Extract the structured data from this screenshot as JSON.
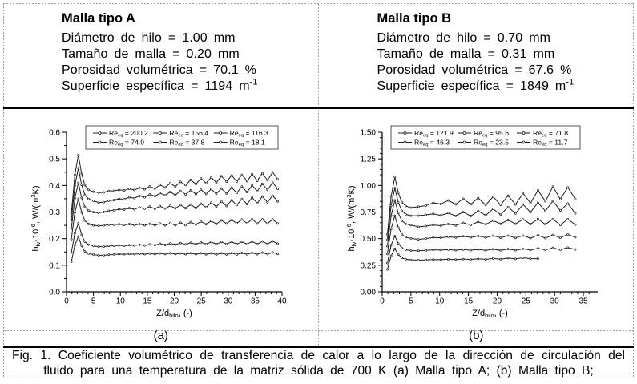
{
  "figure": {
    "specs": [
      {
        "title": "Malla tipo A",
        "lines": [
          "Diámetro de hilo = 1.00 mm",
          "Tamaño de malla = 0.20 mm",
          "Porosidad volumétrica = 70.1 %",
          "Superficie específica = 1194 m^{-1}"
        ]
      },
      {
        "title": "Malla tipo B",
        "lines": [
          "Diámetro de hilo = 0.70 mm",
          "Tamaño de malla = 0.31 mm",
          "Porosidad volumétrica = 67.6 %",
          "Superficie específica = 1849 m^{-1}"
        ]
      }
    ],
    "panel_labels": [
      "(a)",
      "(b)"
    ],
    "caption": "Fig. 1. Coeficiente volumétrico de transferencia de calor a lo largo de la dirección de circulación del fluido para una temperatura de la matriz sólida de 700 K (a) Malla tipo A; (b) Malla tipo B;"
  },
  "colors": {
    "background": "#ffffff",
    "text": "#000000",
    "rule": "#000000",
    "gridline": "#97a0b3",
    "chart_ink": "#1c1c1c",
    "marker_fill": "#ffffff"
  },
  "chart_data": [
    {
      "panel": "a",
      "type": "line",
      "xlabel": "Z/d_{hilo}, (-)",
      "ylabel": "h_{fv}·10^{-6}, W/(m^{3}K)",
      "xlim": [
        0,
        40
      ],
      "ylim": [
        0,
        0.6
      ],
      "xticks": [
        "0",
        "5",
        "10",
        "15",
        "20",
        "25",
        "30",
        "35",
        "40"
      ],
      "yticks": [
        "0.0",
        "0.1",
        "0.2",
        "0.3",
        "0.4",
        "0.5",
        "0.6"
      ],
      "x_minor_step": 1,
      "y_minor_step": 0.05,
      "legend_position": "top-inside",
      "grid": false,
      "series": [
        {
          "name": "Re_{eq} = 200.2",
          "x": [
            0.9,
            1.55,
            2.2,
            2.8,
            3.4,
            4.1,
            5.0,
            5.95,
            6.9,
            7.85,
            8.8,
            9.75,
            10.7,
            11.65,
            12.6,
            13.55,
            14.5,
            15.45,
            16.4,
            17.35,
            18.3,
            19.25,
            20.2,
            21.15,
            22.1,
            23.05,
            24.0,
            24.95,
            25.9,
            26.85,
            27.8,
            28.75,
            29.7,
            30.65,
            31.6,
            32.55,
            33.5,
            34.45,
            35.4,
            36.35,
            37.3,
            38.25,
            39.2
          ],
          "y": [
            0.295,
            0.4402,
            0.515,
            0.4438,
            0.4013,
            0.3835,
            0.3764,
            0.373,
            0.3738,
            0.3796,
            0.3799,
            0.3833,
            0.3813,
            0.3876,
            0.3828,
            0.3915,
            0.3854,
            0.3967,
            0.3879,
            0.4019,
            0.3922,
            0.408,
            0.3961,
            0.4136,
            0.4014,
            0.4213,
            0.405,
            0.4266,
            0.4093,
            0.4305,
            0.4109,
            0.435,
            0.4143,
            0.4378,
            0.4147,
            0.4403,
            0.4158,
            0.4427,
            0.4177,
            0.4458,
            0.4191,
            0.4496,
            0.4228
          ]
        },
        {
          "name": "Re_{eq} = 156.4",
          "x": [
            0.9,
            1.55,
            2.2,
            2.8,
            3.4,
            4.1,
            5.0,
            5.95,
            6.9,
            7.85,
            8.8,
            9.75,
            10.7,
            11.65,
            12.6,
            13.55,
            14.5,
            15.45,
            16.4,
            17.35,
            18.3,
            19.25,
            20.2,
            21.15,
            22.1,
            23.05,
            24.0,
            24.95,
            25.9,
            26.85,
            27.8,
            28.75,
            29.7,
            30.65,
            31.6,
            32.55,
            33.5,
            34.45,
            35.4,
            36.35,
            37.3,
            38.25,
            39.2
          ],
          "y": [
            0.27,
            0.3987,
            0.465,
            0.4021,
            0.3646,
            0.3488,
            0.3425,
            0.3354,
            0.3371,
            0.3425,
            0.345,
            0.3495,
            0.3482,
            0.3554,
            0.352,
            0.3608,
            0.3554,
            0.3665,
            0.3595,
            0.3711,
            0.3628,
            0.3757,
            0.3643,
            0.3795,
            0.3664,
            0.382,
            0.3676,
            0.3839,
            0.3679,
            0.3861,
            0.3691,
            0.3887,
            0.3699,
            0.3918,
            0.372,
            0.3961,
            0.3749,
            0.4003,
            0.3784,
            0.4061,
            0.3831,
            0.4106,
            0.3871
          ]
        },
        {
          "name": "Re_{eq} = 116.3",
          "x": [
            0.9,
            1.55,
            2.2,
            2.8,
            3.4,
            4.1,
            5.0,
            5.95,
            6.9,
            7.85,
            8.8,
            9.75,
            10.7,
            11.65,
            12.6,
            13.55,
            14.5,
            15.45,
            16.4,
            17.35,
            18.3,
            19.25,
            20.2,
            21.15,
            22.1,
            23.05,
            24.0,
            24.95,
            25.9,
            26.85,
            27.8,
            28.75,
            29.7,
            30.65,
            31.6,
            32.55,
            33.5,
            34.45,
            35.4,
            36.35,
            37.3,
            38.25,
            39.2
          ],
          "y": [
            0.238,
            0.3515,
            0.41,
            0.3533,
            0.3195,
            0.3054,
            0.2997,
            0.2971,
            0.3003,
            0.3047,
            0.3066,
            0.3106,
            0.3096,
            0.3146,
            0.3104,
            0.3177,
            0.3124,
            0.3205,
            0.3122,
            0.3225,
            0.3131,
            0.3235,
            0.3138,
            0.3264,
            0.3145,
            0.328,
            0.3149,
            0.3312,
            0.3176,
            0.3353,
            0.3202,
            0.3392,
            0.3227,
            0.3444,
            0.326,
            0.3494,
            0.3303,
            0.3541,
            0.3334,
            0.3586,
            0.3366,
            0.3618,
            0.3401
          ]
        },
        {
          "name": "Re_{eq} = 74.9",
          "x": [
            0.9,
            1.55,
            2.2,
            2.8,
            3.4,
            4.1,
            5.0,
            5.95,
            6.9,
            7.85,
            8.8,
            9.75,
            10.7,
            11.65,
            12.6,
            13.55,
            14.5,
            15.45,
            16.4,
            17.35,
            18.3,
            19.25,
            20.2,
            21.15,
            22.1,
            23.05,
            24.0,
            24.95,
            25.9,
            26.85,
            27.8,
            28.75,
            29.7,
            30.65,
            31.6,
            32.55,
            33.5,
            34.45,
            35.4,
            36.35,
            37.3,
            38.25,
            39.2
          ],
          "y": [
            0.198,
            0.2983,
            0.35,
            0.2985,
            0.2678,
            0.255,
            0.2498,
            0.2484,
            0.2496,
            0.2524,
            0.2526,
            0.2543,
            0.2519,
            0.2546,
            0.2507,
            0.2551,
            0.2503,
            0.2559,
            0.2503,
            0.2568,
            0.2499,
            0.2578,
            0.2504,
            0.2598,
            0.2511,
            0.2621,
            0.2531,
            0.2642,
            0.2541,
            0.2663,
            0.2552,
            0.2688,
            0.2565,
            0.2702,
            0.2576,
            0.2721,
            0.2573,
            0.2727,
            0.2566,
            0.2726,
            0.2567,
            0.2723,
            0.2568
          ]
        },
        {
          "name": "Re_{eq} = 37.8",
          "x": [
            0.9,
            1.55,
            2.2,
            2.8,
            3.4,
            4.1,
            5.0,
            5.95,
            6.9,
            7.85,
            8.8,
            9.75,
            10.7,
            11.65,
            12.6,
            13.55,
            14.5,
            15.45,
            16.4,
            17.35,
            18.3,
            19.25,
            20.2,
            21.15,
            22.1,
            23.05,
            24.0,
            24.95,
            25.9,
            26.85,
            27.8,
            28.75,
            29.7,
            30.65,
            31.6,
            32.55,
            33.5,
            34.45,
            35.4,
            36.35,
            37.3,
            38.25,
            39.2
          ],
          "y": [
            0.148,
            0.2206,
            0.258,
            0.2143,
            0.1883,
            0.1774,
            0.173,
            0.1699,
            0.1701,
            0.1727,
            0.1732,
            0.1747,
            0.1733,
            0.1756,
            0.1743,
            0.177,
            0.1745,
            0.1787,
            0.1757,
            0.1804,
            0.1765,
            0.182,
            0.1779,
            0.1834,
            0.1785,
            0.1847,
            0.1791,
            0.186,
            0.1798,
            0.1869,
            0.1797,
            0.1875,
            0.1798,
            0.188,
            0.1797,
            0.188,
            0.1795,
            0.1889,
            0.1797,
            0.1895,
            0.1802,
            0.1903,
            0.1812
          ]
        },
        {
          "name": "Re_{eq} = 18.1",
          "x": [
            0.9,
            1.55,
            2.2,
            2.8,
            3.4,
            4.1,
            5.0,
            5.95,
            6.9,
            7.85,
            8.8,
            9.75,
            10.7,
            11.65,
            12.6,
            13.55,
            14.5,
            15.45,
            16.4,
            17.35,
            18.3,
            19.25,
            20.2,
            21.15,
            22.1,
            23.05,
            24.0,
            24.95,
            25.9,
            26.85,
            27.8,
            28.75,
            29.7,
            30.65,
            31.6,
            32.55,
            33.5,
            34.45,
            35.4,
            36.35,
            37.3,
            38.25,
            39.2
          ],
          "y": [
            0.113,
            0.1757,
            0.208,
            0.1732,
            0.1524,
            0.1437,
            0.1402,
            0.1372,
            0.1376,
            0.1396,
            0.1406,
            0.1417,
            0.1412,
            0.1424,
            0.1416,
            0.1433,
            0.1419,
            0.1441,
            0.1418,
            0.1446,
            0.142,
            0.1449,
            0.1417,
            0.1448,
            0.1414,
            0.1451,
            0.1412,
            0.1451,
            0.1408,
            0.145,
            0.1407,
            0.1451,
            0.1406,
            0.1456,
            0.1406,
            0.146,
            0.1409,
            0.1466,
            0.1412,
            0.1475,
            0.1417,
            0.1481,
            0.1423
          ]
        }
      ]
    },
    {
      "panel": "b",
      "type": "line",
      "xlabel": "Z/d_{hilo}, (-)",
      "ylabel": "h_{fv}·10^{-6}, W/(m^{3}K)",
      "xlim": [
        0,
        37.5
      ],
      "ylim": [
        0,
        1.5
      ],
      "xticks": [
        "0",
        "5",
        "10",
        "15",
        "20",
        "25",
        "30",
        "35"
      ],
      "yticks": [
        "0.00",
        "0.25",
        "0.50",
        "0.75",
        "1.00",
        "1.25",
        "1.50"
      ],
      "x_minor_step": 1,
      "y_minor_step": 0.05,
      "legend_position": "top-inside",
      "grid": false,
      "series": [
        {
          "name": "Re_{eq} = 121.9",
          "x": [
            0.9,
            1.55,
            2.2,
            2.8,
            3.4,
            4.1,
            5.0,
            6.3,
            7.6,
            8.9,
            10.2,
            11.5,
            12.8,
            14.1,
            15.4,
            16.7,
            18.0,
            19.3,
            20.6,
            21.9,
            23.2,
            24.5,
            25.8,
            27.1,
            28.4,
            29.7,
            31.0,
            32.3,
            33.6
          ],
          "y": [
            0.54,
            0.8964,
            1.08,
            0.9318,
            0.8435,
            0.8064,
            0.7916,
            0.8003,
            0.8107,
            0.8365,
            0.8252,
            0.859,
            0.8227,
            0.8753,
            0.8229,
            0.8815,
            0.8159,
            0.8947,
            0.8172,
            0.904,
            0.8206,
            0.9267,
            0.8339,
            0.9542,
            0.8509,
            0.989,
            0.8707,
            0.9828,
            0.8718
          ]
        },
        {
          "name": "Re_{eq} = 95.6",
          "x": [
            0.9,
            1.55,
            2.2,
            2.8,
            3.4,
            4.1,
            5.0,
            6.3,
            7.6,
            8.9,
            10.2,
            11.5,
            12.8,
            14.1,
            15.4,
            16.7,
            18.0,
            19.3,
            20.6,
            21.9,
            23.2,
            24.5,
            25.8,
            27.1,
            28.4,
            29.7,
            31.0,
            32.3,
            33.6
          ],
          "y": [
            0.49,
            0.8101,
            0.975,
            0.8414,
            0.7617,
            0.7283,
            0.7149,
            0.7162,
            0.7233,
            0.7334,
            0.7183,
            0.7401,
            0.7141,
            0.7491,
            0.7119,
            0.7596,
            0.7193,
            0.7795,
            0.7251,
            0.7971,
            0.7369,
            0.821,
            0.7479,
            0.8376,
            0.7597,
            0.8531,
            0.7644,
            0.8302,
            0.7367
          ]
        },
        {
          "name": "Re_{eq} = 71.8",
          "x": [
            0.9,
            1.55,
            2.2,
            2.8,
            3.4,
            4.1,
            5.0,
            6.3,
            7.6,
            8.9,
            10.2,
            11.5,
            12.8,
            14.1,
            15.4,
            16.7,
            18.0,
            19.3,
            20.6,
            21.9,
            23.2,
            24.5,
            25.8,
            27.1,
            28.4,
            29.7,
            31.0,
            32.3,
            33.6
          ],
          "y": [
            0.43,
            0.7138,
            0.86,
            0.7404,
            0.6691,
            0.6392,
            0.6272,
            0.6117,
            0.6185,
            0.6289,
            0.6221,
            0.6376,
            0.6242,
            0.6477,
            0.6289,
            0.6578,
            0.6344,
            0.6692,
            0.6387,
            0.675,
            0.6396,
            0.6815,
            0.6364,
            0.6838,
            0.6337,
            0.6842,
            0.6283,
            0.6829,
            0.6311
          ]
        },
        {
          "name": "Re_{eq} = 46.3",
          "x": [
            0.9,
            1.55,
            2.2,
            2.8,
            3.4,
            4.1,
            5.0,
            6.3,
            7.6,
            8.9,
            10.2,
            11.5,
            12.8,
            14.1,
            15.4,
            16.7,
            18.0,
            19.3,
            20.6,
            21.9,
            23.2,
            24.5,
            25.8,
            27.1,
            28.4,
            29.7,
            31.0,
            32.3,
            33.6
          ],
          "y": [
            0.355,
            0.5926,
            0.715,
            0.6058,
            0.5407,
            0.5134,
            0.5025,
            0.4928,
            0.5007,
            0.5106,
            0.5076,
            0.517,
            0.5104,
            0.5216,
            0.5117,
            0.5248,
            0.5093,
            0.5276,
            0.5082,
            0.5279,
            0.5066,
            0.5288,
            0.5042,
            0.5322,
            0.5045,
            0.5352,
            0.5078,
            0.5399,
            0.5122
          ]
        },
        {
          "name": "Re_{eq} = 23.5",
          "x": [
            0.9,
            1.55,
            2.2,
            2.8,
            3.4,
            4.1,
            5.0,
            6.3,
            7.6,
            8.9,
            10.2,
            11.5,
            12.8,
            14.1,
            15.4,
            16.7,
            18.0,
            19.3,
            20.6,
            21.9,
            23.2,
            24.5,
            25.8,
            27.1,
            28.4,
            29.7,
            31.0,
            32.3,
            33.6
          ],
          "y": [
            0.27,
            0.4383,
            0.525,
            0.4548,
            0.413,
            0.3954,
            0.3884,
            0.3866,
            0.3899,
            0.3944,
            0.3925,
            0.3969,
            0.3915,
            0.3973,
            0.391,
            0.3982,
            0.39,
            0.4001,
            0.3904,
            0.402,
            0.3906,
            0.4051,
            0.3925,
            0.4089,
            0.3945,
            0.413,
            0.3967,
            0.4156,
            0.3989
          ]
        },
        {
          "name": "Re_{eq} = 11.7",
          "x": [
            0.9,
            1.55,
            2.2,
            2.8,
            3.4,
            4.1,
            5.0,
            6.3,
            7.6,
            8.9,
            10.2,
            11.5,
            12.8,
            14.1,
            15.4,
            16.7,
            18.0,
            19.3,
            20.6,
            21.9,
            23.2,
            24.5,
            25.8,
            27.1
          ],
          "y": [
            0.21,
            0.3387,
            0.405,
            0.3514,
            0.3195,
            0.3061,
            0.3008,
            0.2978,
            0.3001,
            0.3038,
            0.3024,
            0.306,
            0.3031,
            0.3079,
            0.304,
            0.3107,
            0.3054,
            0.3141,
            0.3075,
            0.3173,
            0.3097,
            0.3204,
            0.3116,
            0.3123
          ]
        }
      ]
    }
  ]
}
